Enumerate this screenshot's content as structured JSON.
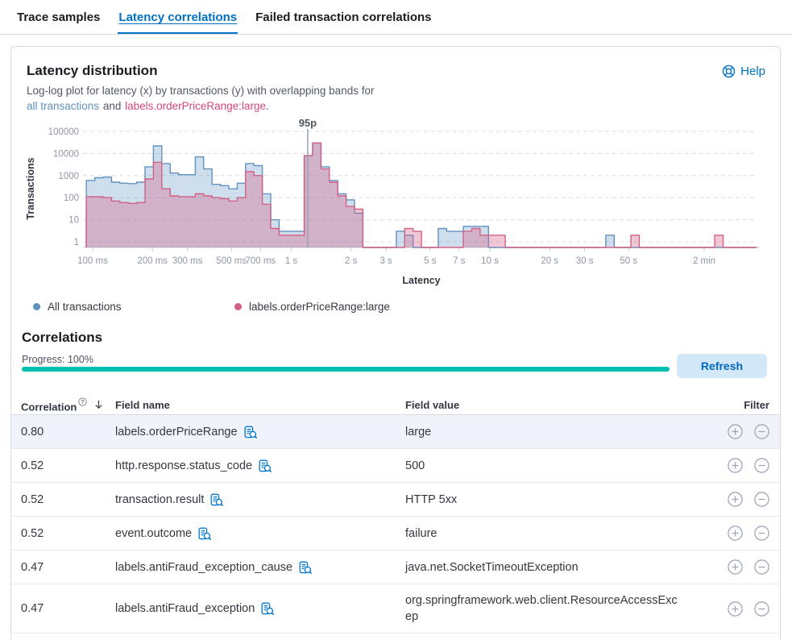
{
  "tabs": [
    {
      "label": "Trace samples",
      "active": false
    },
    {
      "label": "Latency correlations",
      "active": true
    },
    {
      "label": "Failed transaction correlations",
      "active": false
    }
  ],
  "panel": {
    "title": "Latency distribution",
    "help_label": "Help",
    "subtitle": {
      "intro": "Log-log plot for latency (x) by transactions (y) with overlapping bands for",
      "link_all": "all transactions",
      "conjunction": "and",
      "link_large": "labels.orderPriceRange:large",
      "period": "."
    }
  },
  "chart_data": {
    "type": "histogram",
    "x_scale": "log",
    "y_scale": "log",
    "xlabel": "Latency",
    "ylabel": "Transactions",
    "x_ticks": [
      {
        "label": "100 ms",
        "ms": 100
      },
      {
        "label": "200 ms",
        "ms": 200
      },
      {
        "label": "300 ms",
        "ms": 300
      },
      {
        "label": "500 ms",
        "ms": 500
      },
      {
        "label": "700 ms",
        "ms": 700
      },
      {
        "label": "1 s",
        "ms": 1000
      },
      {
        "label": "2 s",
        "ms": 2000
      },
      {
        "label": "3 s",
        "ms": 3000
      },
      {
        "label": "5 s",
        "ms": 5000
      },
      {
        "label": "7 s",
        "ms": 7000
      },
      {
        "label": "10 s",
        "ms": 10000
      },
      {
        "label": "20 s",
        "ms": 20000
      },
      {
        "label": "30 s",
        "ms": 30000
      },
      {
        "label": "50 s",
        "ms": 50000
      },
      {
        "label": "2 min",
        "ms": 120000
      }
    ],
    "y_ticks": [
      1,
      10,
      100,
      1000,
      10000,
      100000
    ],
    "annotation": {
      "label": "95p",
      "ms": 1210
    },
    "bins": {
      "start_ms": 93,
      "ratio": 1.102,
      "count": 80
    },
    "series": [
      {
        "name": "All transactions",
        "color": "#6092C0",
        "fill": "rgba(96,146,192,0.30)",
        "values": [
          600,
          800,
          850,
          500,
          450,
          430,
          500,
          2500,
          22000,
          3500,
          1300,
          1100,
          1100,
          7000,
          2000,
          400,
          350,
          250,
          450,
          3500,
          2800,
          150,
          10,
          3,
          3,
          3,
          8000,
          30000,
          2500,
          600,
          150,
          80,
          20,
          0,
          0,
          0,
          0,
          3,
          2,
          0,
          0,
          0,
          4,
          3,
          3,
          5,
          5,
          5,
          0,
          0,
          0,
          0,
          0,
          0,
          0,
          0,
          0,
          0,
          0,
          0,
          0,
          0,
          2,
          0,
          0,
          0,
          0,
          0,
          0,
          0,
          0,
          0,
          0,
          0,
          0,
          0,
          0,
          0,
          0,
          0
        ]
      },
      {
        "name": "labels.orderPriceRange:large",
        "color": "#D36086",
        "fill": "rgba(211,96,134,0.35)",
        "values": [
          110,
          110,
          100,
          70,
          60,
          55,
          60,
          700,
          4000,
          250,
          120,
          110,
          110,
          150,
          120,
          100,
          90,
          70,
          100,
          1500,
          1000,
          50,
          4,
          2,
          2,
          2,
          8000,
          30000,
          2000,
          500,
          120,
          40,
          30,
          0,
          0,
          0,
          0,
          0,
          4,
          3,
          0,
          0,
          0,
          0,
          0,
          3,
          4,
          2,
          2,
          2,
          0,
          0,
          0,
          0,
          0,
          0,
          0,
          0,
          0,
          0,
          0,
          0,
          0,
          0,
          0,
          2,
          0,
          0,
          0,
          0,
          0,
          0,
          0,
          0,
          0,
          2,
          0,
          0,
          0,
          0
        ]
      }
    ],
    "legend_position": "bottom"
  },
  "correlations": {
    "heading": "Correlations",
    "progress_label": "Progress: 100%",
    "progress_value": 100,
    "refresh_label": "Refresh",
    "columns": [
      "Correlation",
      "Field name",
      "Field value",
      "Filter"
    ],
    "rows": [
      {
        "correlation": "0.80",
        "field_name": "labels.orderPriceRange",
        "field_value": "large"
      },
      {
        "correlation": "0.52",
        "field_name": "http.response.status_code",
        "field_value": "500"
      },
      {
        "correlation": "0.52",
        "field_name": "transaction.result",
        "field_value": "HTTP 5xx"
      },
      {
        "correlation": "0.52",
        "field_name": "event.outcome",
        "field_value": "failure"
      },
      {
        "correlation": "0.47",
        "field_name": "labels.antiFraud_exception_cause",
        "field_value": "java.net.SocketTimeoutException"
      },
      {
        "correlation": "0.47",
        "field_name": "labels.antiFraud_exception",
        "field_value": "org.springframework.web.client.ResourceAccessExcep"
      }
    ]
  }
}
